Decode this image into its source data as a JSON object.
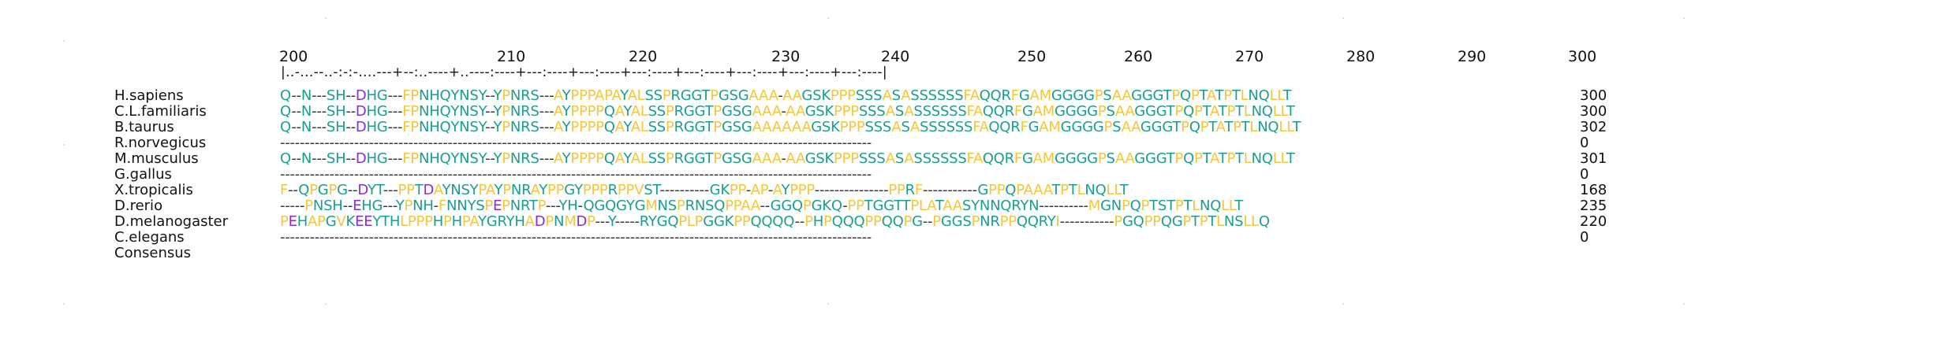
{
  "ruler": {
    "labels": [
      "200",
      "210",
      "220",
      "230",
      "240",
      "250",
      "260",
      "270",
      "280",
      "290",
      "300"
    ],
    "line": "|..-...--..-:-:-....---+--:..----+..----:----+---:----+---:----+---:----+---:----+---:----+---:----+---:----|"
  },
  "species": [
    "H.sapiens",
    "C.L.familiaris",
    "B.taurus",
    "R.norvegicus",
    "M.musculus",
    "G.gallus",
    "X.tropicalis",
    "D.rerio",
    "D.melanogaster",
    "C.elegans",
    "Consensus"
  ],
  "sequences": [
    "Q--N---SH--DHG---FPNHQYNSY--YPNRS---AYPPPAPAYALSSPRGGTPGSGAAA-AAGSKPPPSSSASASSSSSSFAQQRFGAMGGGGPSAAGGGTPQPTATPTLNQLLT",
    "Q--N---SH--DHG---FPNHQYNSY--YPNRS---AYPPPPQAYALSSPRGGTPGSGAAA-AAGSKPPPSSSASASSSSSSFAQQRFGAMGGGGPSAAGGGTPQPTATPTLNQLLT",
    "Q--N---SH--DHG---FPNHQYNSY--YPNRS---AYPPPPQAYALSSPRGGTPGSGAAAAAAGSKPPPSSSASASSSSSSFAQQRFGAMGGGGPSAAGGGTPQPTATPTLNQLLT",
    "------------------------------------------------------------------------------------------------------------------------",
    "Q--N---SH--DHG---FPNHQYNSY--YPNRS---AYPPPPQAYALSSPRGGTPGSGAAA-AAGSKPPPSSSASASSSSSSFAQQRFGAMGGGGPSAAGGGTPQPTATPTLNQLLT",
    "------------------------------------------------------------------------------------------------------------------------",
    "F--QPGPG--DYT---PPTDAYNSYPAYPNRAYPPGYPPPRPPVST----------GKPP-AP-AYPPP---------------PPRF-----------GPPQPAAATPTLNQLLT",
    "-----PNSH--EHG---YPNH-FNNYSPEPNRTP---YH-QGQGYGMNSPRNSQPPAA--GGQPGKQ-PPTGGTTPLATAASYNNQRYN----------MGNPQPTSTPTLNQLLT",
    "PEHAPGVKEEYTHLPPPHPHPAYGRYHADPNMDP---Y-----RYGQPLPGGKPPQQQQ--PHPQQQPPQQPG--PGGSPNRPPQQRYI-----------PGQPPQGPTPTLNSLLQ",
    "------------------------------------------------------------------------------------------------------------------------",
    ""
  ],
  "end_positions": [
    "300",
    "300",
    "302",
    "0",
    "301",
    "0",
    "168",
    "235",
    "220",
    "0",
    ""
  ],
  "colors": {
    "teal": "#1a9e8f",
    "yellow": "#f2c73a",
    "purple": "#8a2bd6",
    "gap": "#333333"
  }
}
